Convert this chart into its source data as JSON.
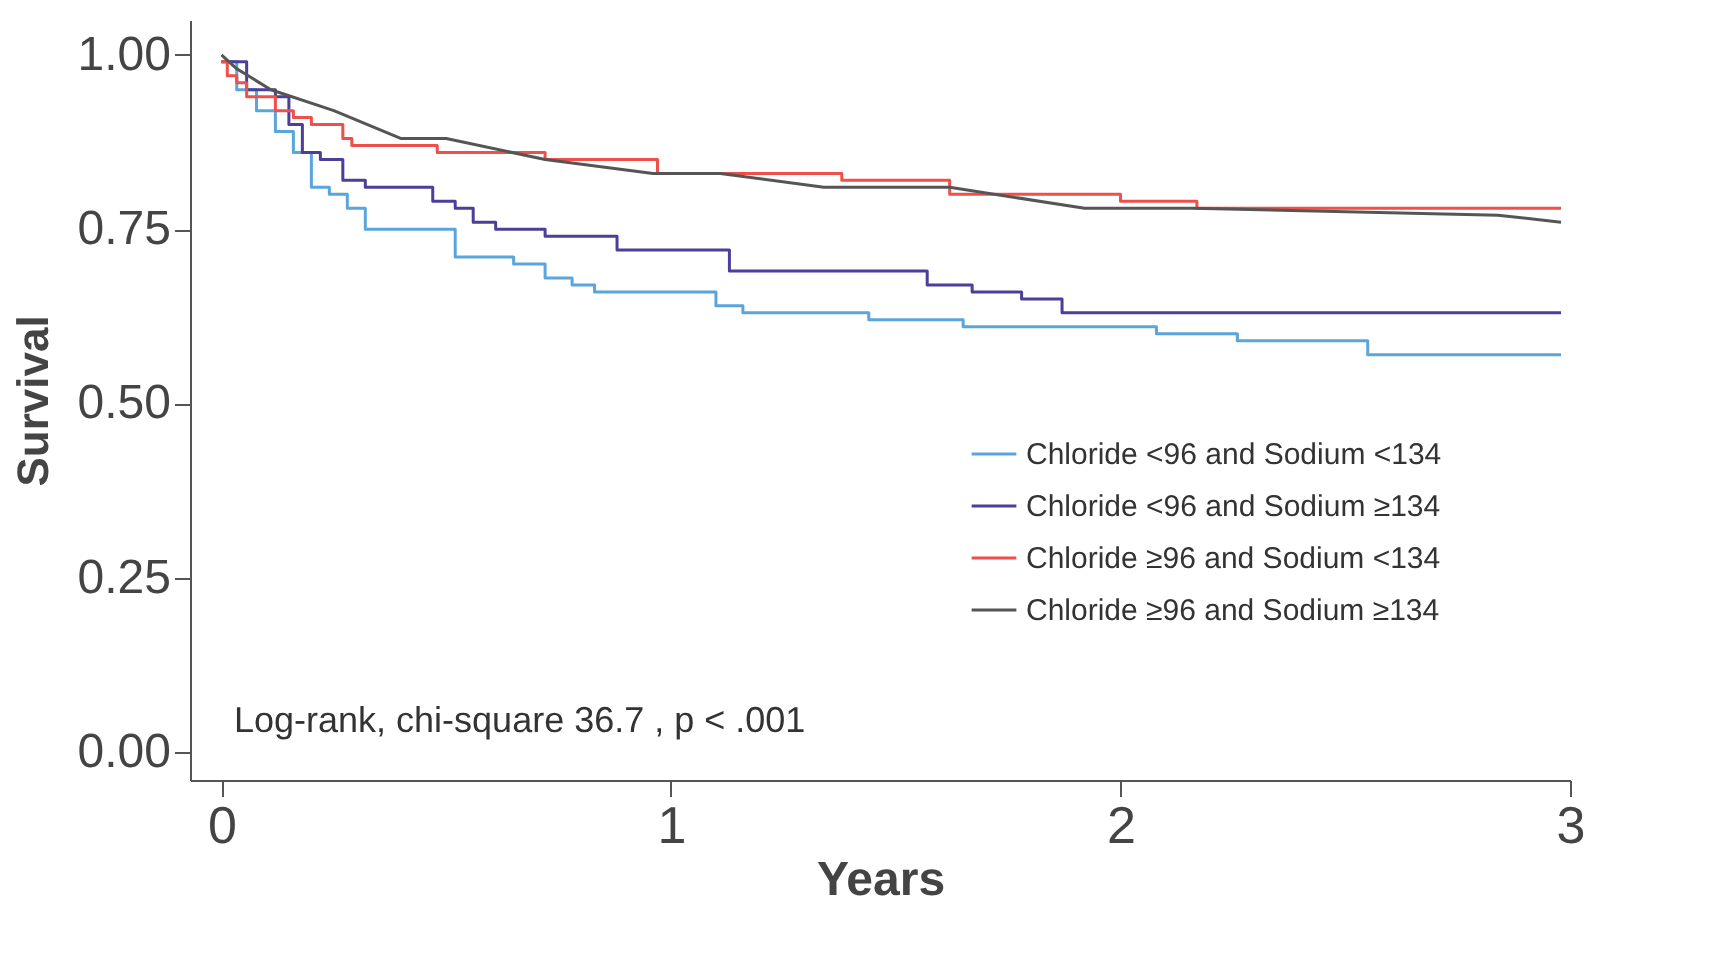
{
  "chart_data": {
    "type": "step",
    "xlabel": "Years",
    "ylabel": "Survival",
    "xlim": [
      -0.07,
      3
    ],
    "xticks": [
      0,
      1,
      2,
      3
    ],
    "ylim": [
      -0.04,
      1.05
    ],
    "yticks": [
      {
        "value": 0,
        "label": "0.00"
      },
      {
        "value": 0.25,
        "label": "0.25"
      },
      {
        "value": 0.5,
        "label": "0.50"
      },
      {
        "value": 0.75,
        "label": "0.75"
      },
      {
        "value": 1,
        "label": "1.00"
      }
    ],
    "grid": false,
    "legend": "bottom right",
    "annotations": [
      "Log-rank, chi-square 36.7 , p < .001"
    ],
    "series": [
      {
        "name": "Chloride <96 and Sodium <134",
        "color": "#5aa5dc",
        "x": [
          0,
          0.034,
          0.078,
          0.12,
          0.16,
          0.2,
          0.24,
          0.28,
          0.32,
          0.52,
          0.65,
          0.72,
          0.78,
          0.83,
          1.1,
          1.16,
          1.44,
          1.65,
          2.08,
          2.26,
          2.55,
          2.98
        ],
        "values": [
          0.99,
          0.95,
          0.92,
          0.89,
          0.86,
          0.81,
          0.8,
          0.78,
          0.75,
          0.71,
          0.7,
          0.68,
          0.67,
          0.66,
          0.64,
          0.63,
          0.62,
          0.61,
          0.6,
          0.59,
          0.57,
          0.57
        ]
      },
      {
        "name": "Chloride <96 and Sodium ≥134",
        "color": "#4b3f99",
        "x": [
          0,
          0.056,
          0.12,
          0.15,
          0.18,
          0.22,
          0.27,
          0.32,
          0.47,
          0.52,
          0.56,
          0.61,
          0.72,
          0.88,
          1.13,
          1.57,
          1.67,
          1.78,
          1.87,
          2.98
        ],
        "values": [
          0.99,
          0.95,
          0.94,
          0.9,
          0.86,
          0.85,
          0.82,
          0.81,
          0.79,
          0.78,
          0.76,
          0.75,
          0.74,
          0.72,
          0.69,
          0.67,
          0.66,
          0.65,
          0.63,
          0.63
        ]
      },
      {
        "name": "Chloride ≥96 and Sodium <134",
        "color": "#f0504a",
        "x": [
          0,
          0.013,
          0.034,
          0.056,
          0.12,
          0.16,
          0.2,
          0.27,
          0.29,
          0.48,
          0.72,
          0.97,
          1.38,
          1.62,
          2.0,
          2.17,
          2.98
        ],
        "values": [
          0.99,
          0.97,
          0.96,
          0.94,
          0.92,
          0.91,
          0.9,
          0.88,
          0.87,
          0.86,
          0.85,
          0.83,
          0.82,
          0.8,
          0.79,
          0.78,
          0.78
        ]
      },
      {
        "name": "Chloride ≥96 and Sodium ≥134",
        "color": "#555555",
        "type": "line",
        "x": [
          0,
          0.034,
          0.11,
          0.25,
          0.4,
          0.5,
          0.72,
          0.96,
          1.11,
          1.34,
          1.62,
          1.92,
          2.16,
          2.84,
          2.98
        ],
        "values": [
          1.0,
          0.98,
          0.95,
          0.92,
          0.88,
          0.88,
          0.85,
          0.83,
          0.83,
          0.81,
          0.81,
          0.78,
          0.78,
          0.77,
          0.76
        ]
      }
    ]
  }
}
